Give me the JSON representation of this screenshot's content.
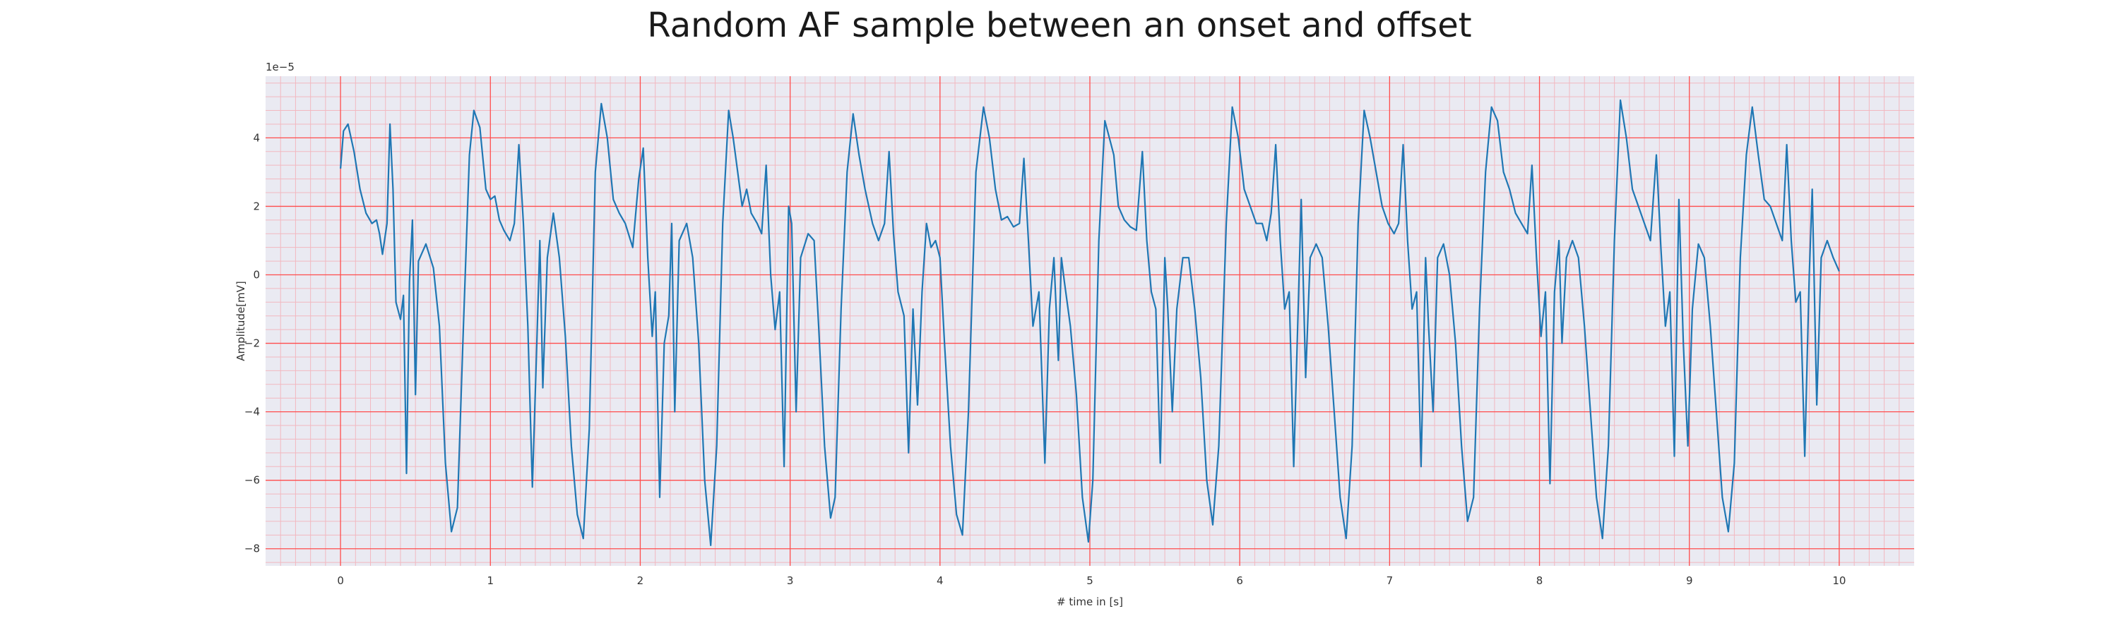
{
  "chart_data": {
    "type": "line",
    "title": "Random AF sample between an onset and offset",
    "xlabel": "# time in [s]",
    "ylabel": "Amplitude[mV]",
    "y_offset_label": "1e−5",
    "y_scale_exponent": -5,
    "xlim": [
      -0.5,
      10.5
    ],
    "ylim": [
      -8.5,
      5.8
    ],
    "x_ticks": [
      0,
      1,
      2,
      3,
      4,
      5,
      6,
      7,
      8,
      9,
      10
    ],
    "x_tick_labels": [
      "0",
      "1",
      "2",
      "3",
      "4",
      "5",
      "6",
      "7",
      "8",
      "9",
      "10"
    ],
    "y_ticks": [
      -8,
      -6,
      -4,
      -2,
      0,
      2,
      4
    ],
    "y_tick_labels": [
      "−8",
      "−6",
      "−4",
      "−2",
      "0",
      "2",
      "4"
    ],
    "grid": true,
    "minor_grid": true,
    "colors": {
      "line": "#1f77b4",
      "plot_background": "#eaeaf2",
      "major_grid": "#ff4d4d",
      "minor_grid": "#f2b8c0"
    },
    "series": [
      {
        "points": [
          [
            0.0,
            3.1
          ],
          [
            0.02,
            4.2
          ],
          [
            0.05,
            4.4
          ],
          [
            0.09,
            3.6
          ],
          [
            0.13,
            2.5
          ],
          [
            0.17,
            1.8
          ],
          [
            0.21,
            1.5
          ],
          [
            0.24,
            1.6
          ],
          [
            0.26,
            1.2
          ],
          [
            0.28,
            0.6
          ],
          [
            0.31,
            1.5
          ],
          [
            0.33,
            4.4
          ],
          [
            0.35,
            2.5
          ],
          [
            0.37,
            -0.8
          ],
          [
            0.4,
            -1.3
          ],
          [
            0.42,
            -0.6
          ],
          [
            0.44,
            -5.8
          ],
          [
            0.46,
            -0.2
          ],
          [
            0.48,
            1.6
          ],
          [
            0.5,
            -3.5
          ],
          [
            0.52,
            0.4
          ],
          [
            0.57,
            0.9
          ],
          [
            0.62,
            0.2
          ],
          [
            0.66,
            -1.5
          ],
          [
            0.7,
            -5.5
          ],
          [
            0.74,
            -7.5
          ],
          [
            0.78,
            -6.8
          ],
          [
            0.82,
            -1.5
          ],
          [
            0.86,
            3.5
          ],
          [
            0.89,
            4.8
          ],
          [
            0.93,
            4.3
          ],
          [
            0.97,
            2.5
          ],
          [
            1.0,
            2.2
          ],
          [
            1.03,
            2.3
          ],
          [
            1.06,
            1.6
          ],
          [
            1.09,
            1.3
          ],
          [
            1.13,
            1.0
          ],
          [
            1.16,
            1.5
          ],
          [
            1.19,
            3.8
          ],
          [
            1.22,
            1.5
          ],
          [
            1.25,
            -1.5
          ],
          [
            1.28,
            -6.2
          ],
          [
            1.31,
            -2.0
          ],
          [
            1.33,
            1.0
          ],
          [
            1.35,
            -3.3
          ],
          [
            1.38,
            0.5
          ],
          [
            1.42,
            1.8
          ],
          [
            1.46,
            0.5
          ],
          [
            1.5,
            -1.8
          ],
          [
            1.54,
            -5.0
          ],
          [
            1.58,
            -7.0
          ],
          [
            1.62,
            -7.7
          ],
          [
            1.66,
            -4.5
          ],
          [
            1.7,
            3.0
          ],
          [
            1.74,
            5.0
          ],
          [
            1.78,
            4.0
          ],
          [
            1.82,
            2.2
          ],
          [
            1.86,
            1.8
          ],
          [
            1.9,
            1.5
          ],
          [
            1.95,
            0.8
          ],
          [
            1.99,
            2.8
          ],
          [
            2.02,
            3.7
          ],
          [
            2.05,
            0.5
          ],
          [
            2.08,
            -1.8
          ],
          [
            2.1,
            -0.5
          ],
          [
            2.13,
            -6.5
          ],
          [
            2.16,
            -2.0
          ],
          [
            2.19,
            -1.2
          ],
          [
            2.21,
            1.5
          ],
          [
            2.23,
            -4.0
          ],
          [
            2.26,
            1.0
          ],
          [
            2.31,
            1.5
          ],
          [
            2.35,
            0.5
          ],
          [
            2.39,
            -2.0
          ],
          [
            2.43,
            -6.0
          ],
          [
            2.47,
            -7.9
          ],
          [
            2.51,
            -5.0
          ],
          [
            2.55,
            1.5
          ],
          [
            2.59,
            4.8
          ],
          [
            2.62,
            4.0
          ],
          [
            2.65,
            3.0
          ],
          [
            2.68,
            2.0
          ],
          [
            2.71,
            2.5
          ],
          [
            2.74,
            1.8
          ],
          [
            2.78,
            1.5
          ],
          [
            2.81,
            1.2
          ],
          [
            2.84,
            3.2
          ],
          [
            2.87,
            0.0
          ],
          [
            2.9,
            -1.6
          ],
          [
            2.93,
            -0.5
          ],
          [
            2.96,
            -5.6
          ],
          [
            2.99,
            2.0
          ],
          [
            3.01,
            1.5
          ],
          [
            3.04,
            -4.0
          ],
          [
            3.07,
            0.5
          ],
          [
            3.12,
            1.2
          ],
          [
            3.16,
            1.0
          ],
          [
            3.19,
            -1.5
          ],
          [
            3.23,
            -5.0
          ],
          [
            3.27,
            -7.1
          ],
          [
            3.3,
            -6.5
          ],
          [
            3.34,
            -1.0
          ],
          [
            3.38,
            3.0
          ],
          [
            3.42,
            4.7
          ],
          [
            3.46,
            3.5
          ],
          [
            3.5,
            2.5
          ],
          [
            3.55,
            1.5
          ],
          [
            3.59,
            1.0
          ],
          [
            3.63,
            1.5
          ],
          [
            3.66,
            3.6
          ],
          [
            3.69,
            1.2
          ],
          [
            3.72,
            -0.5
          ],
          [
            3.76,
            -1.2
          ],
          [
            3.79,
            -5.2
          ],
          [
            3.82,
            -1.0
          ],
          [
            3.85,
            -3.8
          ],
          [
            3.88,
            -0.5
          ],
          [
            3.91,
            1.5
          ],
          [
            3.94,
            0.8
          ],
          [
            3.97,
            1.0
          ],
          [
            4.0,
            0.5
          ],
          [
            4.03,
            -2.0
          ],
          [
            4.07,
            -5.0
          ],
          [
            4.11,
            -7.0
          ],
          [
            4.15,
            -7.6
          ],
          [
            4.19,
            -4.0
          ],
          [
            4.24,
            3.0
          ],
          [
            4.29,
            4.9
          ],
          [
            4.33,
            4.0
          ],
          [
            4.37,
            2.5
          ],
          [
            4.41,
            1.6
          ],
          [
            4.45,
            1.7
          ],
          [
            4.49,
            1.4
          ],
          [
            4.53,
            1.5
          ],
          [
            4.56,
            3.4
          ],
          [
            4.59,
            1.0
          ],
          [
            4.62,
            -1.5
          ],
          [
            4.66,
            -0.5
          ],
          [
            4.7,
            -5.5
          ],
          [
            4.73,
            -1.0
          ],
          [
            4.76,
            0.5
          ],
          [
            4.79,
            -2.5
          ],
          [
            4.81,
            0.5
          ],
          [
            4.83,
            -0.2
          ],
          [
            4.87,
            -1.5
          ],
          [
            4.91,
            -3.5
          ],
          [
            4.95,
            -6.5
          ],
          [
            4.99,
            -7.8
          ],
          [
            5.02,
            -6.0
          ],
          [
            5.06,
            1.0
          ],
          [
            5.1,
            4.5
          ],
          [
            5.13,
            4.0
          ],
          [
            5.16,
            3.5
          ],
          [
            5.19,
            2.0
          ],
          [
            5.23,
            1.6
          ],
          [
            5.27,
            1.4
          ],
          [
            5.31,
            1.3
          ],
          [
            5.35,
            3.6
          ],
          [
            5.38,
            1.0
          ],
          [
            5.41,
            -0.5
          ],
          [
            5.44,
            -1.0
          ],
          [
            5.47,
            -5.5
          ],
          [
            5.5,
            0.5
          ],
          [
            5.52,
            -1.0
          ],
          [
            5.55,
            -4.0
          ],
          [
            5.58,
            -1.0
          ],
          [
            5.62,
            0.5
          ],
          [
            5.66,
            0.5
          ],
          [
            5.7,
            -1.0
          ],
          [
            5.74,
            -3.0
          ],
          [
            5.78,
            -6.0
          ],
          [
            5.82,
            -7.3
          ],
          [
            5.86,
            -5.0
          ],
          [
            5.91,
            1.5
          ],
          [
            5.95,
            4.9
          ],
          [
            5.99,
            4.0
          ],
          [
            6.03,
            2.5
          ],
          [
            6.07,
            2.0
          ],
          [
            6.11,
            1.5
          ],
          [
            6.15,
            1.5
          ],
          [
            6.18,
            1.0
          ],
          [
            6.21,
            1.8
          ],
          [
            6.24,
            3.8
          ],
          [
            6.27,
            1.0
          ],
          [
            6.3,
            -1.0
          ],
          [
            6.33,
            -0.5
          ],
          [
            6.36,
            -5.6
          ],
          [
            6.39,
            -1.0
          ],
          [
            6.41,
            2.2
          ],
          [
            6.44,
            -3.0
          ],
          [
            6.47,
            0.5
          ],
          [
            6.51,
            0.9
          ],
          [
            6.55,
            0.5
          ],
          [
            6.59,
            -1.5
          ],
          [
            6.63,
            -4.0
          ],
          [
            6.67,
            -6.5
          ],
          [
            6.71,
            -7.7
          ],
          [
            6.75,
            -5.0
          ],
          [
            6.79,
            1.5
          ],
          [
            6.83,
            4.8
          ],
          [
            6.87,
            4.0
          ],
          [
            6.91,
            3.0
          ],
          [
            6.95,
            2.0
          ],
          [
            6.99,
            1.5
          ],
          [
            7.03,
            1.2
          ],
          [
            7.06,
            1.5
          ],
          [
            7.09,
            3.8
          ],
          [
            7.12,
            1.0
          ],
          [
            7.15,
            -1.0
          ],
          [
            7.18,
            -0.5
          ],
          [
            7.21,
            -5.6
          ],
          [
            7.24,
            0.5
          ],
          [
            7.26,
            -1.5
          ],
          [
            7.29,
            -4.0
          ],
          [
            7.32,
            0.5
          ],
          [
            7.36,
            0.9
          ],
          [
            7.4,
            0.0
          ],
          [
            7.44,
            -2.0
          ],
          [
            7.48,
            -5.0
          ],
          [
            7.52,
            -7.2
          ],
          [
            7.56,
            -6.5
          ],
          [
            7.6,
            -1.0
          ],
          [
            7.64,
            3.0
          ],
          [
            7.68,
            4.9
          ],
          [
            7.72,
            4.5
          ],
          [
            7.76,
            3.0
          ],
          [
            7.8,
            2.5
          ],
          [
            7.84,
            1.8
          ],
          [
            7.88,
            1.5
          ],
          [
            7.92,
            1.2
          ],
          [
            7.95,
            3.2
          ],
          [
            7.98,
            0.5
          ],
          [
            8.01,
            -1.8
          ],
          [
            8.04,
            -0.5
          ],
          [
            8.07,
            -6.1
          ],
          [
            8.1,
            -0.5
          ],
          [
            8.13,
            1.0
          ],
          [
            8.15,
            -2.0
          ],
          [
            8.18,
            0.5
          ],
          [
            8.22,
            1.0
          ],
          [
            8.26,
            0.5
          ],
          [
            8.3,
            -1.5
          ],
          [
            8.34,
            -4.0
          ],
          [
            8.38,
            -6.5
          ],
          [
            8.42,
            -7.7
          ],
          [
            8.46,
            -5.0
          ],
          [
            8.5,
            1.0
          ],
          [
            8.54,
            5.1
          ],
          [
            8.58,
            4.0
          ],
          [
            8.62,
            2.5
          ],
          [
            8.66,
            2.0
          ],
          [
            8.7,
            1.5
          ],
          [
            8.74,
            1.0
          ],
          [
            8.78,
            3.5
          ],
          [
            8.81,
            0.8
          ],
          [
            8.84,
            -1.5
          ],
          [
            8.87,
            -0.5
          ],
          [
            8.9,
            -5.3
          ],
          [
            8.93,
            2.2
          ],
          [
            8.96,
            -2.0
          ],
          [
            8.99,
            -5.0
          ],
          [
            9.02,
            -1.0
          ],
          [
            9.06,
            0.9
          ],
          [
            9.1,
            0.5
          ],
          [
            9.14,
            -1.5
          ],
          [
            9.18,
            -4.0
          ],
          [
            9.22,
            -6.5
          ],
          [
            9.26,
            -7.5
          ],
          [
            9.3,
            -5.5
          ],
          [
            9.34,
            0.5
          ],
          [
            9.38,
            3.5
          ],
          [
            9.42,
            4.9
          ],
          [
            9.46,
            3.5
          ],
          [
            9.5,
            2.2
          ],
          [
            9.54,
            2.0
          ],
          [
            9.58,
            1.5
          ],
          [
            9.62,
            1.0
          ],
          [
            9.65,
            3.8
          ],
          [
            9.68,
            1.0
          ],
          [
            9.71,
            -0.8
          ],
          [
            9.74,
            -0.5
          ],
          [
            9.77,
            -5.3
          ],
          [
            9.8,
            0.0
          ],
          [
            9.82,
            2.5
          ],
          [
            9.85,
            -3.8
          ],
          [
            9.88,
            0.5
          ],
          [
            9.92,
            1.0
          ],
          [
            9.96,
            0.5
          ],
          [
            10.0,
            0.1
          ]
        ]
      }
    ]
  }
}
